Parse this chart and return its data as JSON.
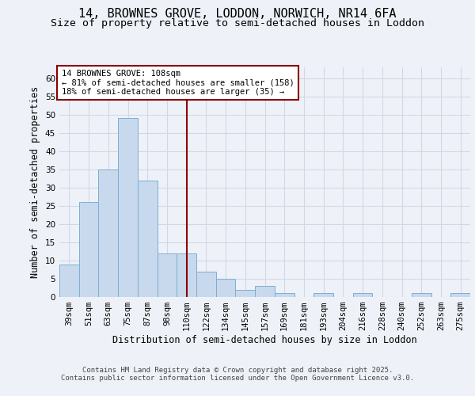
{
  "title1": "14, BROWNES GROVE, LODDON, NORWICH, NR14 6FA",
  "title2": "Size of property relative to semi-detached houses in Loddon",
  "xlabel": "Distribution of semi-detached houses by size in Loddon",
  "ylabel": "Number of semi-detached properties",
  "categories": [
    "39sqm",
    "51sqm",
    "63sqm",
    "75sqm",
    "87sqm",
    "98sqm",
    "110sqm",
    "122sqm",
    "134sqm",
    "145sqm",
    "157sqm",
    "169sqm",
    "181sqm",
    "193sqm",
    "204sqm",
    "216sqm",
    "228sqm",
    "240sqm",
    "252sqm",
    "263sqm",
    "275sqm"
  ],
  "values": [
    9,
    26,
    35,
    49,
    32,
    12,
    12,
    7,
    5,
    2,
    3,
    1,
    0,
    1,
    0,
    1,
    0,
    0,
    1,
    0,
    1
  ],
  "bar_color": "#c8d9ed",
  "bar_edge_color": "#7aafd4",
  "grid_color": "#d0d8e8",
  "background_color": "#eef2f8",
  "vline_x": 6,
  "vline_color": "#8b0000",
  "annotation_text": "14 BROWNES GROVE: 108sqm\n← 81% of semi-detached houses are smaller (158)\n18% of semi-detached houses are larger (35) →",
  "annotation_box_color": "#ffffff",
  "annotation_box_edge": "#8b0000",
  "ylim": [
    0,
    63
  ],
  "yticks": [
    0,
    5,
    10,
    15,
    20,
    25,
    30,
    35,
    40,
    45,
    50,
    55,
    60
  ],
  "footer_text": "Contains HM Land Registry data © Crown copyright and database right 2025.\nContains public sector information licensed under the Open Government Licence v3.0.",
  "title_fontsize": 11,
  "subtitle_fontsize": 9.5,
  "tick_fontsize": 7.5,
  "ylabel_fontsize": 8.5,
  "xlabel_fontsize": 8.5,
  "annotation_fontsize": 7.5,
  "footer_fontsize": 6.5
}
